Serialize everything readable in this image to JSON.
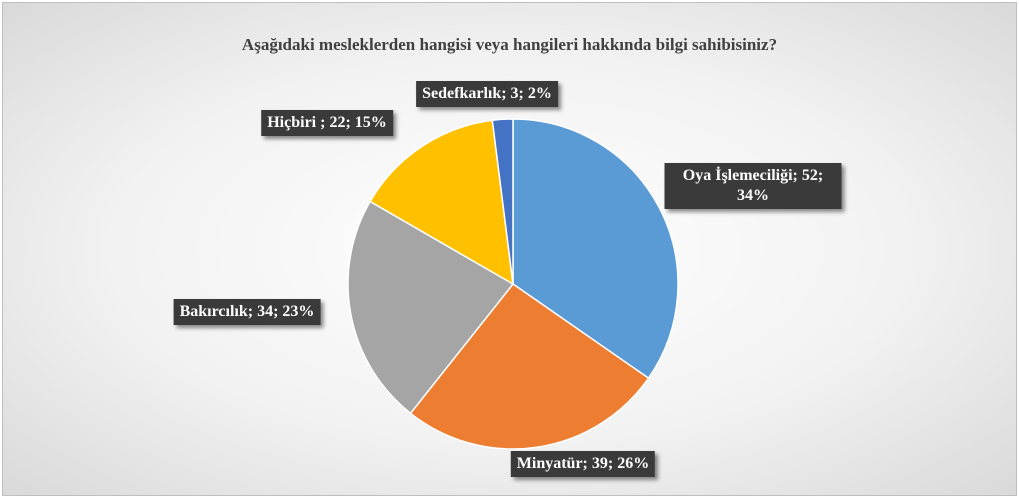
{
  "chart_data": {
    "type": "pie",
    "title": "Aşağıdaki mesleklerden hangisi veya hangileri hakkında bilgi sahibisiniz?",
    "categories": [
      "Oya İşlemeciliği",
      "Minyatür",
      "Bakırcılık",
      "Hiçbiri",
      "Sedefkarlık"
    ],
    "values": [
      52,
      39,
      34,
      22,
      3
    ],
    "value_labels": [
      "Oya İşlemeciliği; 52; 34%",
      "Minyatür; 39; 26%",
      "Bakırcılık; 34; 23%",
      "Hiçbiri ; 22; 15%",
      "Sedefkarlık; 3; 2%"
    ],
    "colors": [
      "#5b9bd5",
      "#ed7d31",
      "#a5a5a5",
      "#ffc000",
      "#4472c4"
    ]
  }
}
